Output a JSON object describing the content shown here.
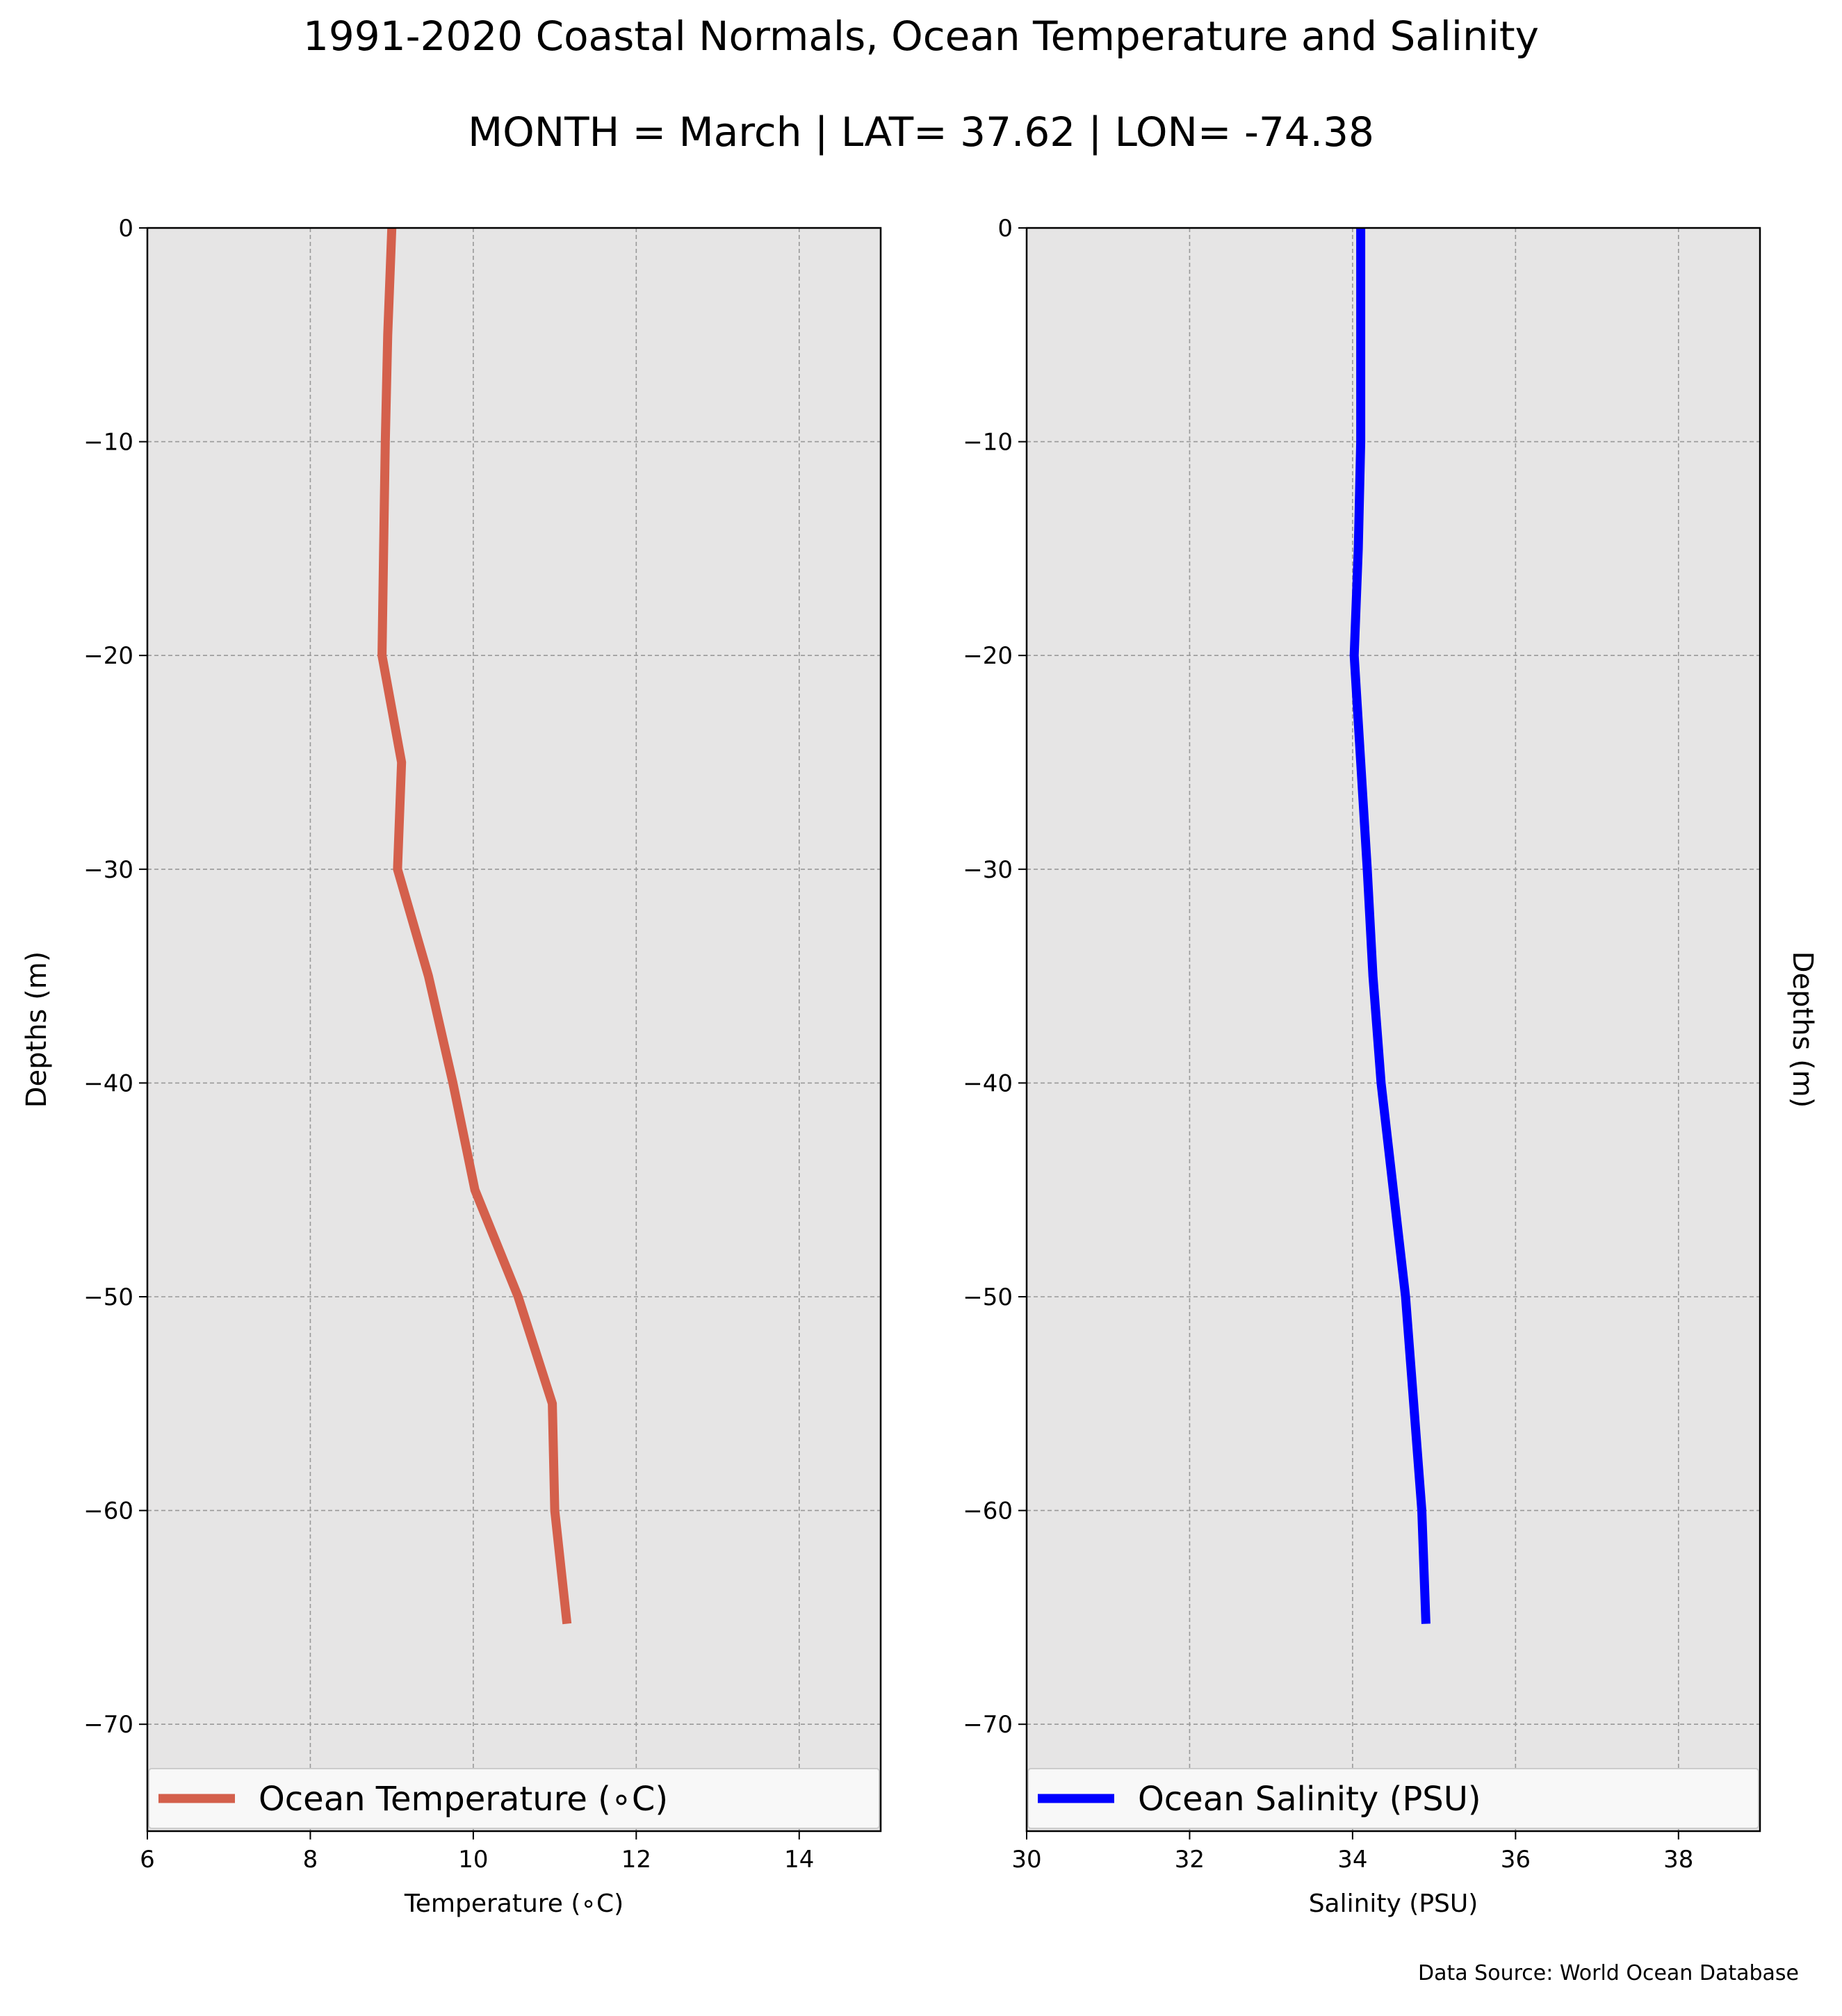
{
  "figure": {
    "title": "1991-2020 Coastal Normals, Ocean Temperature and Salinity",
    "subtitle": "MONTH = March | LAT= 37.62 | LON= -74.38",
    "source_note": "Data Source: World Ocean Database"
  },
  "colors": {
    "plot_background": "#e6e5e5",
    "grid": "#999999",
    "temperature_line": "#d4604c",
    "salinity_line": "#0000ff"
  },
  "chart_data": [
    {
      "type": "line",
      "xlabel": "Temperature (∘C)",
      "ylabel": "Depths (m)",
      "xlim": [
        6,
        15
      ],
      "ylim": [
        -75,
        0
      ],
      "xticks": [
        6,
        8,
        10,
        12,
        14
      ],
      "yticks": [
        0,
        -10,
        -20,
        -30,
        -40,
        -50,
        -60,
        -70
      ],
      "xtick_labels": [
        "6",
        "8",
        "10",
        "12",
        "14"
      ],
      "ytick_labels": [
        "0",
        "−10",
        "−20",
        "−30",
        "−40",
        "−50",
        "−60",
        "−70"
      ],
      "grid": true,
      "legend_position": "bottom",
      "series": [
        {
          "name": "Ocean Temperature (∘C)",
          "color": "#d4604c",
          "x": [
            9.0,
            8.95,
            8.92,
            8.9,
            8.88,
            9.12,
            9.07,
            9.45,
            9.75,
            10.02,
            10.55,
            10.97,
            11.0,
            11.15
          ],
          "y": [
            0,
            -5,
            -10,
            -15,
            -20,
            -25,
            -30,
            -35,
            -40,
            -45,
            -50,
            -55,
            -60,
            -65.3
          ]
        }
      ]
    },
    {
      "type": "line",
      "xlabel": "Salinity (PSU)",
      "ylabel": "Depths (m)",
      "xlim": [
        30,
        39
      ],
      "ylim": [
        -75,
        0
      ],
      "xticks": [
        30,
        32,
        34,
        36,
        38
      ],
      "yticks": [
        0,
        -10,
        -20,
        -30,
        -40,
        -50,
        -60,
        -70
      ],
      "xtick_labels": [
        "30",
        "32",
        "34",
        "36",
        "38"
      ],
      "ytick_labels": [
        "0",
        "−10",
        "−20",
        "−30",
        "−40",
        "−50",
        "−60",
        "−70"
      ],
      "grid": true,
      "legend_position": "bottom",
      "series": [
        {
          "name": "Ocean Salinity (PSU)",
          "color": "#0000ff",
          "x": [
            34.1,
            34.1,
            34.1,
            34.07,
            34.02,
            34.1,
            34.18,
            34.25,
            34.35,
            34.5,
            34.65,
            34.75,
            34.85,
            34.9
          ],
          "y": [
            0,
            -5,
            -10,
            -15,
            -20,
            -25,
            -30,
            -35,
            -40,
            -45,
            -50,
            -55,
            -60,
            -65.3
          ]
        }
      ]
    }
  ]
}
